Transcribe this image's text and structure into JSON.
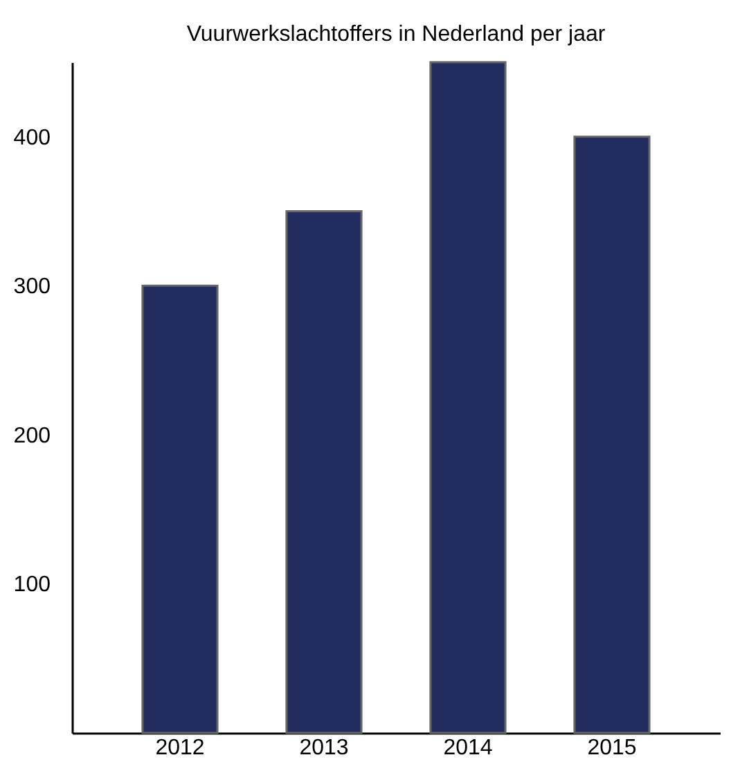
{
  "chart_data": {
    "type": "bar",
    "title": "Vuurwerkslachtoffers in Nederland per jaar",
    "categories": [
      "2012",
      "2013",
      "2014",
      "2015"
    ],
    "values": [
      300,
      350,
      450,
      400
    ],
    "color": "#232c5e",
    "ylim": [
      0,
      450
    ],
    "yticks": [
      100,
      200,
      300,
      400
    ],
    "grid": false
  }
}
